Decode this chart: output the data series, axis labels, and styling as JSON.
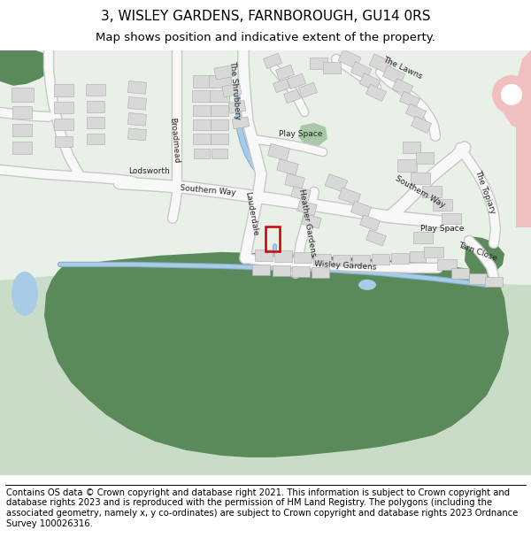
{
  "title": "3, WISLEY GARDENS, FARNBOROUGH, GU14 0RS",
  "subtitle": "Map shows position and indicative extent of the property.",
  "footer": "Contains OS data © Crown copyright and database right 2021. This information is subject to Crown copyright and database rights 2023 and is reproduced with the permission of HM Land Registry. The polygons (including the associated geometry, namely x, y co-ordinates) are subject to Crown copyright and database rights 2023 Ordnance Survey 100026316.",
  "map_bg_light": "#e8f0e8",
  "map_bg_white": "#f0f0f0",
  "building_fill": "#d8d8d8",
  "building_edge": "#bbbbbb",
  "road_fill": "#ffffff",
  "road_edge": "#cccccc",
  "water_fill": "#a8cce8",
  "green_dark": "#5a8a5a",
  "green_light": "#c8dcc8",
  "pink_fill": "#f0c0c0",
  "red_outline": "#cc0000",
  "title_fontsize": 11,
  "subtitle_fontsize": 9.5,
  "footer_fontsize": 7.2,
  "label_fontsize": 6.5
}
